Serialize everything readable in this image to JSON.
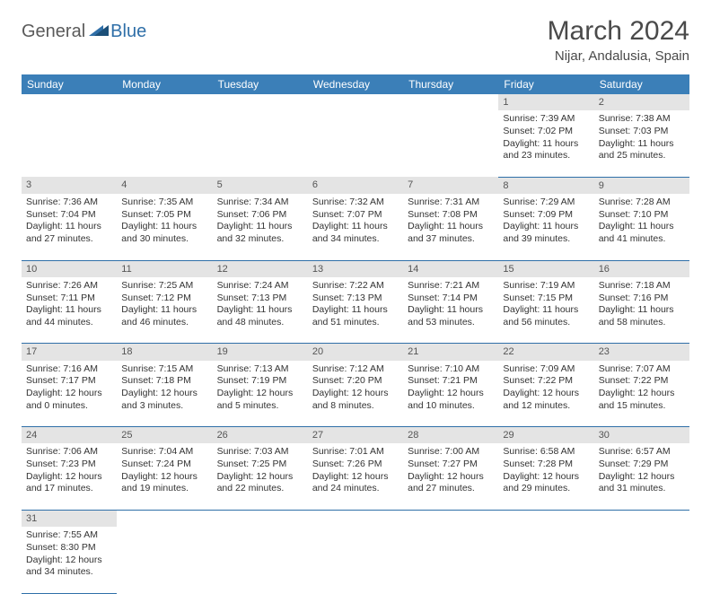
{
  "logo": {
    "general": "General",
    "blue": "Blue"
  },
  "header": {
    "month": "March 2024",
    "location": "Nijar, Andalusia, Spain"
  },
  "colors": {
    "header_bg": "#3b7fb8",
    "row_divider": "#2f6fa8",
    "daynum_bg": "#e4e4e4"
  },
  "weekdays": [
    "Sunday",
    "Monday",
    "Tuesday",
    "Wednesday",
    "Thursday",
    "Friday",
    "Saturday"
  ],
  "weeks": [
    [
      null,
      null,
      null,
      null,
      null,
      {
        "n": "1",
        "sr": "Sunrise: 7:39 AM",
        "ss": "Sunset: 7:02 PM",
        "d1": "Daylight: 11 hours",
        "d2": "and 23 minutes."
      },
      {
        "n": "2",
        "sr": "Sunrise: 7:38 AM",
        "ss": "Sunset: 7:03 PM",
        "d1": "Daylight: 11 hours",
        "d2": "and 25 minutes."
      }
    ],
    [
      {
        "n": "3",
        "sr": "Sunrise: 7:36 AM",
        "ss": "Sunset: 7:04 PM",
        "d1": "Daylight: 11 hours",
        "d2": "and 27 minutes."
      },
      {
        "n": "4",
        "sr": "Sunrise: 7:35 AM",
        "ss": "Sunset: 7:05 PM",
        "d1": "Daylight: 11 hours",
        "d2": "and 30 minutes."
      },
      {
        "n": "5",
        "sr": "Sunrise: 7:34 AM",
        "ss": "Sunset: 7:06 PM",
        "d1": "Daylight: 11 hours",
        "d2": "and 32 minutes."
      },
      {
        "n": "6",
        "sr": "Sunrise: 7:32 AM",
        "ss": "Sunset: 7:07 PM",
        "d1": "Daylight: 11 hours",
        "d2": "and 34 minutes."
      },
      {
        "n": "7",
        "sr": "Sunrise: 7:31 AM",
        "ss": "Sunset: 7:08 PM",
        "d1": "Daylight: 11 hours",
        "d2": "and 37 minutes."
      },
      {
        "n": "8",
        "sr": "Sunrise: 7:29 AM",
        "ss": "Sunset: 7:09 PM",
        "d1": "Daylight: 11 hours",
        "d2": "and 39 minutes."
      },
      {
        "n": "9",
        "sr": "Sunrise: 7:28 AM",
        "ss": "Sunset: 7:10 PM",
        "d1": "Daylight: 11 hours",
        "d2": "and 41 minutes."
      }
    ],
    [
      {
        "n": "10",
        "sr": "Sunrise: 7:26 AM",
        "ss": "Sunset: 7:11 PM",
        "d1": "Daylight: 11 hours",
        "d2": "and 44 minutes."
      },
      {
        "n": "11",
        "sr": "Sunrise: 7:25 AM",
        "ss": "Sunset: 7:12 PM",
        "d1": "Daylight: 11 hours",
        "d2": "and 46 minutes."
      },
      {
        "n": "12",
        "sr": "Sunrise: 7:24 AM",
        "ss": "Sunset: 7:13 PM",
        "d1": "Daylight: 11 hours",
        "d2": "and 48 minutes."
      },
      {
        "n": "13",
        "sr": "Sunrise: 7:22 AM",
        "ss": "Sunset: 7:13 PM",
        "d1": "Daylight: 11 hours",
        "d2": "and 51 minutes."
      },
      {
        "n": "14",
        "sr": "Sunrise: 7:21 AM",
        "ss": "Sunset: 7:14 PM",
        "d1": "Daylight: 11 hours",
        "d2": "and 53 minutes."
      },
      {
        "n": "15",
        "sr": "Sunrise: 7:19 AM",
        "ss": "Sunset: 7:15 PM",
        "d1": "Daylight: 11 hours",
        "d2": "and 56 minutes."
      },
      {
        "n": "16",
        "sr": "Sunrise: 7:18 AM",
        "ss": "Sunset: 7:16 PM",
        "d1": "Daylight: 11 hours",
        "d2": "and 58 minutes."
      }
    ],
    [
      {
        "n": "17",
        "sr": "Sunrise: 7:16 AM",
        "ss": "Sunset: 7:17 PM",
        "d1": "Daylight: 12 hours",
        "d2": "and 0 minutes."
      },
      {
        "n": "18",
        "sr": "Sunrise: 7:15 AM",
        "ss": "Sunset: 7:18 PM",
        "d1": "Daylight: 12 hours",
        "d2": "and 3 minutes."
      },
      {
        "n": "19",
        "sr": "Sunrise: 7:13 AM",
        "ss": "Sunset: 7:19 PM",
        "d1": "Daylight: 12 hours",
        "d2": "and 5 minutes."
      },
      {
        "n": "20",
        "sr": "Sunrise: 7:12 AM",
        "ss": "Sunset: 7:20 PM",
        "d1": "Daylight: 12 hours",
        "d2": "and 8 minutes."
      },
      {
        "n": "21",
        "sr": "Sunrise: 7:10 AM",
        "ss": "Sunset: 7:21 PM",
        "d1": "Daylight: 12 hours",
        "d2": "and 10 minutes."
      },
      {
        "n": "22",
        "sr": "Sunrise: 7:09 AM",
        "ss": "Sunset: 7:22 PM",
        "d1": "Daylight: 12 hours",
        "d2": "and 12 minutes."
      },
      {
        "n": "23",
        "sr": "Sunrise: 7:07 AM",
        "ss": "Sunset: 7:22 PM",
        "d1": "Daylight: 12 hours",
        "d2": "and 15 minutes."
      }
    ],
    [
      {
        "n": "24",
        "sr": "Sunrise: 7:06 AM",
        "ss": "Sunset: 7:23 PM",
        "d1": "Daylight: 12 hours",
        "d2": "and 17 minutes."
      },
      {
        "n": "25",
        "sr": "Sunrise: 7:04 AM",
        "ss": "Sunset: 7:24 PM",
        "d1": "Daylight: 12 hours",
        "d2": "and 19 minutes."
      },
      {
        "n": "26",
        "sr": "Sunrise: 7:03 AM",
        "ss": "Sunset: 7:25 PM",
        "d1": "Daylight: 12 hours",
        "d2": "and 22 minutes."
      },
      {
        "n": "27",
        "sr": "Sunrise: 7:01 AM",
        "ss": "Sunset: 7:26 PM",
        "d1": "Daylight: 12 hours",
        "d2": "and 24 minutes."
      },
      {
        "n": "28",
        "sr": "Sunrise: 7:00 AM",
        "ss": "Sunset: 7:27 PM",
        "d1": "Daylight: 12 hours",
        "d2": "and 27 minutes."
      },
      {
        "n": "29",
        "sr": "Sunrise: 6:58 AM",
        "ss": "Sunset: 7:28 PM",
        "d1": "Daylight: 12 hours",
        "d2": "and 29 minutes."
      },
      {
        "n": "30",
        "sr": "Sunrise: 6:57 AM",
        "ss": "Sunset: 7:29 PM",
        "d1": "Daylight: 12 hours",
        "d2": "and 31 minutes."
      }
    ],
    [
      {
        "n": "31",
        "sr": "Sunrise: 7:55 AM",
        "ss": "Sunset: 8:30 PM",
        "d1": "Daylight: 12 hours",
        "d2": "and 34 minutes."
      },
      null,
      null,
      null,
      null,
      null,
      null
    ]
  ]
}
